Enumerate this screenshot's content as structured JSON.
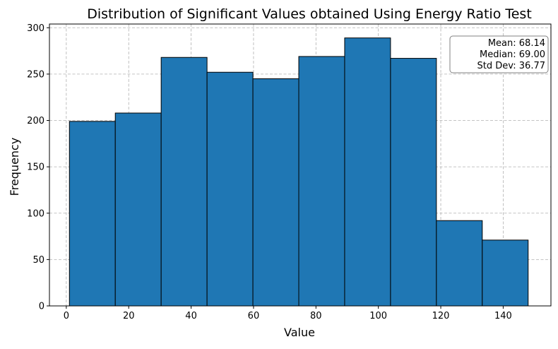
{
  "chart_data": {
    "type": "bar",
    "title": "Distribution of Significant Values obtained Using Energy Ratio Test",
    "xlabel": "Value",
    "ylabel": "Frequency",
    "xlim": [
      -5.4,
      155.3
    ],
    "ylim": [
      0,
      304
    ],
    "xticks": [
      0,
      20,
      40,
      60,
      80,
      100,
      120,
      140
    ],
    "yticks": [
      0,
      50,
      100,
      150,
      200,
      250,
      300
    ],
    "grid": true,
    "color": "#1f77b4",
    "edge_color": "#000000",
    "bins": [
      {
        "x0": 1,
        "x1": 15.7,
        "value": 199
      },
      {
        "x0": 15.7,
        "x1": 30.4,
        "value": 208
      },
      {
        "x0": 30.4,
        "x1": 45.1,
        "value": 268
      },
      {
        "x0": 45.1,
        "x1": 59.8,
        "value": 252
      },
      {
        "x0": 59.8,
        "x1": 74.5,
        "value": 245
      },
      {
        "x0": 74.5,
        "x1": 89.2,
        "value": 269
      },
      {
        "x0": 89.2,
        "x1": 103.9,
        "value": 289
      },
      {
        "x0": 103.9,
        "x1": 118.6,
        "value": 267
      },
      {
        "x0": 118.6,
        "x1": 133.3,
        "value": 92
      },
      {
        "x0": 133.3,
        "x1": 148,
        "value": 71
      }
    ],
    "stats_box": {
      "location": "top-right",
      "lines": [
        "Mean: 68.14",
        "Median: 69.00",
        "Std Dev: 36.77"
      ]
    }
  }
}
